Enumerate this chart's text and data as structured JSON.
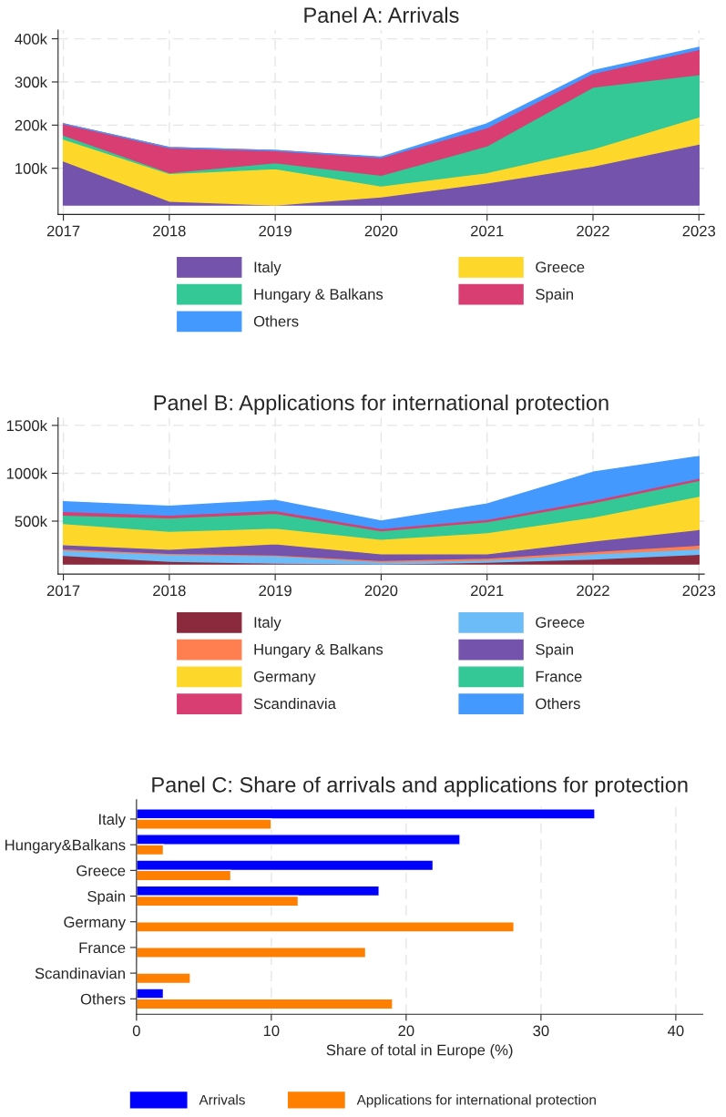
{
  "chart_data": [
    {
      "type": "area",
      "stacked": true,
      "title": "Panel A: Arrivals",
      "x": [
        2017,
        2018,
        2019,
        2020,
        2021,
        2022,
        2023
      ],
      "xlim": [
        2016.95,
        2023.05
      ],
      "xticks": [
        2017,
        2018,
        2019,
        2020,
        2021,
        2022,
        2023
      ],
      "ylim": [
        -7000,
        420000
      ],
      "yticks": [
        {
          "value": 100000,
          "label": "100k"
        },
        {
          "value": 200000,
          "label": "200k"
        },
        {
          "value": 300000,
          "label": "300k"
        },
        {
          "value": 400000,
          "label": "400k"
        }
      ],
      "grid": true,
      "legend": "bottom",
      "series": [
        {
          "name": "Italy",
          "color": "#7353ab",
          "values": [
            117000,
            24000,
            15000,
            34000,
            66000,
            105000,
            156000
          ]
        },
        {
          "name": "Greece",
          "color": "#fdd82b",
          "values": [
            51000,
            64000,
            84000,
            25000,
            24000,
            40000,
            63000
          ]
        },
        {
          "name": "Hungary & Balkans",
          "color": "#33c896",
          "values": [
            9000,
            2000,
            14000,
            25000,
            62000,
            143000,
            98000
          ]
        },
        {
          "name": "Spain",
          "color": "#d83e72",
          "values": [
            26000,
            58000,
            28000,
            41000,
            42000,
            32000,
            58000
          ]
        },
        {
          "name": "Others",
          "color": "#4499ff",
          "values": [
            0,
            0,
            0,
            1000,
            9000,
            6000,
            5000
          ]
        }
      ]
    },
    {
      "type": "area",
      "stacked": true,
      "title": "Panel B: Applications for international protection",
      "x": [
        2017,
        2018,
        2019,
        2020,
        2021,
        2022,
        2023
      ],
      "xlim": [
        2016.95,
        2023.05
      ],
      "xticks": [
        2017,
        2018,
        2019,
        2020,
        2021,
        2022,
        2023
      ],
      "ylim": [
        -54000,
        1580000
      ],
      "yticks": [
        {
          "value": 500000,
          "label": "500k"
        },
        {
          "value": 1000000,
          "label": "1000k"
        },
        {
          "value": 1500000,
          "label": "1500k"
        }
      ],
      "grid": true,
      "legend": "bottom",
      "series": [
        {
          "name": "Italy",
          "color": "#8b2a3c",
          "values": [
            143000,
            81000,
            61000,
            52000,
            71000,
            105000,
            153000
          ]
        },
        {
          "name": "Greece",
          "color": "#6cbcf7",
          "values": [
            53000,
            72000,
            78000,
            24000,
            24000,
            53000,
            58000
          ]
        },
        {
          "name": "Hungary & Balkans",
          "color": "#ff7f50",
          "values": [
            15000,
            10000,
            9000,
            14000,
            19000,
            24000,
            38000
          ]
        },
        {
          "name": "Spain",
          "color": "#7353ab",
          "values": [
            43000,
            43000,
            116000,
            68000,
            44000,
            111000,
            164000
          ]
        },
        {
          "name": "Germany",
          "color": "#fdd82b",
          "values": [
            222000,
            188000,
            164000,
            154000,
            222000,
            250000,
            347000
          ]
        },
        {
          "name": "France",
          "color": "#33c896",
          "values": [
            87000,
            140000,
            154000,
            87000,
            115000,
            150000,
            164000
          ]
        },
        {
          "name": "Scandinavia",
          "color": "#d83e72",
          "values": [
            38000,
            29000,
            29000,
            24000,
            24000,
            24000,
            24000
          ]
        },
        {
          "name": "Others",
          "color": "#4499ff",
          "values": [
            101000,
            91000,
            106000,
            77000,
            159000,
            294000,
            227000
          ]
        }
      ]
    },
    {
      "type": "bar",
      "orientation": "horizontal",
      "title": "Panel C: Share of arrivals and applications for protection",
      "xlabel": "Share of total in Europe (%)",
      "categories": [
        "Italy",
        "Hungary&Balkans",
        "Greece",
        "Spain",
        "Germany",
        "France",
        "Scandinavian",
        "Others"
      ],
      "xlim": [
        0,
        42
      ],
      "xticks": [
        0,
        10,
        20,
        30,
        40
      ],
      "grid": "x",
      "legend": "bottom",
      "series": [
        {
          "name": "Arrivals",
          "color": "#0000ff",
          "values": [
            34,
            24,
            22,
            18,
            null,
            null,
            null,
            2
          ]
        },
        {
          "name": "Applications for international protection",
          "color": "#ff7f00",
          "values": [
            10,
            2,
            7,
            12,
            28,
            17,
            4,
            19
          ]
        }
      ]
    }
  ]
}
